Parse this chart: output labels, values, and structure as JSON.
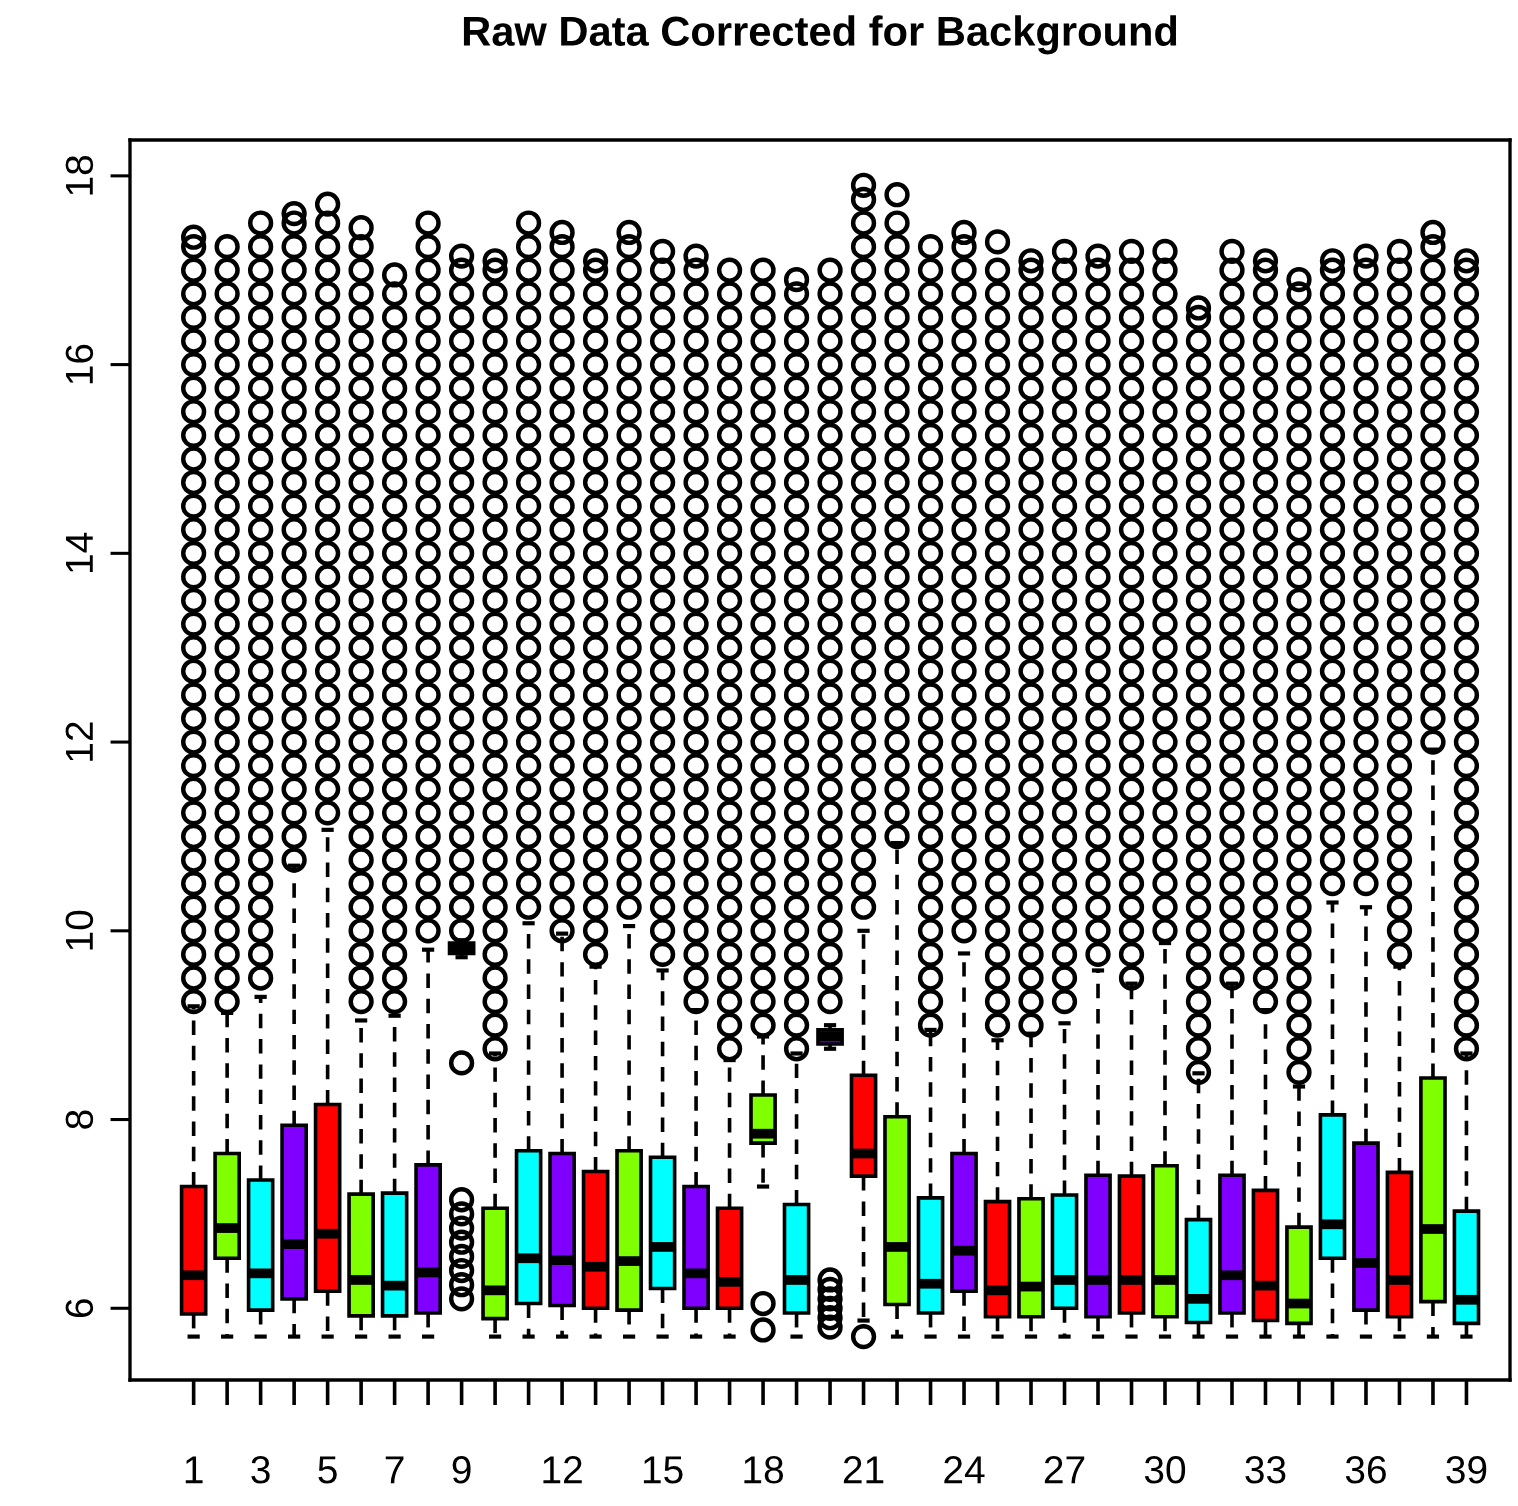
{
  "chart_data": {
    "type": "box",
    "title": "Raw Data Corrected for Background",
    "categories": [
      "1",
      null,
      "3",
      null,
      "5",
      null,
      "7",
      null,
      "9",
      null,
      null,
      "12",
      null,
      null,
      "15",
      null,
      null,
      "18",
      null,
      null,
      "21",
      null,
      null,
      "24",
      null,
      null,
      "27",
      null,
      null,
      "30",
      null,
      null,
      "33",
      null,
      null,
      "36",
      null,
      null,
      "39"
    ],
    "colors": [
      "#ff0000",
      "#80ff00",
      "#00ffff",
      "#8000ff",
      "#ff0000",
      "#80ff00",
      "#00ffff",
      "#8000ff",
      "#ff0000",
      "#80ff00",
      "#00ffff",
      "#8000ff",
      "#ff0000",
      "#80ff00",
      "#00ffff",
      "#8000ff",
      "#ff0000",
      "#80ff00",
      "#00ffff",
      "#8000ff",
      "#ff0000",
      "#80ff00",
      "#00ffff",
      "#8000ff",
      "#ff0000",
      "#80ff00",
      "#00ffff",
      "#8000ff",
      "#ff0000",
      "#80ff00",
      "#00ffff",
      "#8000ff",
      "#ff0000",
      "#80ff00",
      "#00ffff",
      "#8000ff",
      "#ff0000",
      "#80ff00",
      "#00ffff"
    ],
    "ylim": [
      5.24,
      18.38
    ],
    "yticks": [
      6,
      8,
      10,
      12,
      14,
      16,
      18
    ],
    "boxes": [
      {
        "low": 5.7,
        "q1": 5.94,
        "median": 6.35,
        "q3": 7.29,
        "high": 9.2,
        "outliers": [
          9.25,
          9.5,
          9.75,
          10,
          10.25,
          10.5,
          10.75,
          11,
          11.25,
          11.5,
          11.75,
          12,
          12.25,
          12.5,
          12.75,
          13,
          13.25,
          13.5,
          13.75,
          14,
          14.25,
          14.5,
          14.75,
          15,
          15.25,
          15.5,
          15.75,
          16,
          16.25,
          16.5,
          16.75,
          17,
          17.25,
          17.35
        ]
      },
      {
        "low": 5.7,
        "q1": 6.53,
        "median": 6.85,
        "q3": 7.64,
        "high": 9.13,
        "outliers": [
          9.25,
          9.5,
          9.75,
          10,
          10.25,
          10.5,
          10.75,
          11,
          11.25,
          11.5,
          11.75,
          12,
          12.25,
          12.5,
          12.75,
          13,
          13.25,
          13.5,
          13.75,
          14,
          14.25,
          14.5,
          14.75,
          15,
          15.25,
          15.5,
          15.75,
          16,
          16.25,
          16.5,
          16.75,
          17,
          17.25
        ]
      },
      {
        "low": 5.7,
        "q1": 5.98,
        "median": 6.37,
        "q3": 7.36,
        "high": 9.3,
        "outliers": [
          9.5,
          9.75,
          10,
          10.25,
          10.5,
          10.75,
          11,
          11.25,
          11.5,
          11.75,
          12,
          12.25,
          12.5,
          12.75,
          13,
          13.25,
          13.5,
          13.75,
          14,
          14.25,
          14.5,
          14.75,
          15,
          15.25,
          15.5,
          15.75,
          16,
          16.25,
          16.5,
          16.75,
          17,
          17.25,
          17.5
        ]
      },
      {
        "low": 5.7,
        "q1": 6.1,
        "median": 6.68,
        "q3": 7.94,
        "high": 10.69,
        "outliers": [
          10.75,
          11,
          11.25,
          11.5,
          11.75,
          12,
          12.25,
          12.5,
          12.75,
          13,
          13.25,
          13.5,
          13.75,
          14,
          14.25,
          14.5,
          14.75,
          15,
          15.25,
          15.5,
          15.75,
          16,
          16.25,
          16.5,
          16.75,
          17,
          17.25,
          17.5,
          17.6
        ]
      },
      {
        "low": 5.7,
        "q1": 6.18,
        "median": 6.79,
        "q3": 8.16,
        "high": 11.07,
        "outliers": [
          11.25,
          11.5,
          11.75,
          12,
          12.25,
          12.5,
          12.75,
          13,
          13.25,
          13.5,
          13.75,
          14,
          14.25,
          14.5,
          14.75,
          15,
          15.25,
          15.5,
          15.75,
          16,
          16.25,
          16.5,
          16.75,
          17,
          17.25,
          17.5,
          17.7
        ]
      },
      {
        "low": 5.7,
        "q1": 5.92,
        "median": 6.3,
        "q3": 7.21,
        "high": 9.05,
        "outliers": [
          9.25,
          9.5,
          9.75,
          10,
          10.25,
          10.5,
          10.75,
          11,
          11.25,
          11.5,
          11.75,
          12,
          12.25,
          12.5,
          12.75,
          13,
          13.25,
          13.5,
          13.75,
          14,
          14.25,
          14.5,
          14.75,
          15,
          15.25,
          15.5,
          15.75,
          16,
          16.25,
          16.5,
          16.75,
          17,
          17.25,
          17.45
        ]
      },
      {
        "low": 5.7,
        "q1": 5.92,
        "median": 6.24,
        "q3": 7.22,
        "high": 9.1,
        "outliers": [
          9.25,
          9.5,
          9.75,
          10,
          10.25,
          10.5,
          10.75,
          11,
          11.25,
          11.5,
          11.75,
          12,
          12.25,
          12.5,
          12.75,
          13,
          13.25,
          13.5,
          13.75,
          14,
          14.25,
          14.5,
          14.75,
          15,
          15.25,
          15.5,
          15.75,
          16,
          16.25,
          16.5,
          16.75,
          16.95
        ]
      },
      {
        "low": 5.7,
        "q1": 5.95,
        "median": 6.38,
        "q3": 7.52,
        "high": 9.8,
        "outliers": [
          10,
          10.25,
          10.5,
          10.75,
          11,
          11.25,
          11.5,
          11.75,
          12,
          12.25,
          12.5,
          12.75,
          13,
          13.25,
          13.5,
          13.75,
          14,
          14.25,
          14.5,
          14.75,
          15,
          15.25,
          15.5,
          15.75,
          16,
          16.25,
          16.5,
          16.75,
          17,
          17.25,
          17.5
        ]
      },
      {
        "low": 9.72,
        "q1": 9.76,
        "median": 9.8,
        "q3": 9.87,
        "high": 9.9,
        "outliers": [
          6.1,
          6.25,
          6.4,
          6.55,
          6.7,
          6.85,
          7.0,
          7.15,
          8.6,
          10,
          10.25,
          10.5,
          10.75,
          11,
          11.25,
          11.5,
          11.75,
          12,
          12.25,
          12.5,
          12.75,
          13,
          13.25,
          13.5,
          13.75,
          14,
          14.25,
          14.5,
          14.75,
          15,
          15.25,
          15.5,
          15.75,
          16,
          16.25,
          16.5,
          16.75,
          17,
          17.15
        ]
      },
      {
        "low": 5.7,
        "q1": 5.89,
        "median": 6.19,
        "q3": 7.06,
        "high": 8.7,
        "outliers": [
          8.75,
          9,
          9.25,
          9.5,
          9.75,
          10,
          10.25,
          10.5,
          10.75,
          11,
          11.25,
          11.5,
          11.75,
          12,
          12.25,
          12.5,
          12.75,
          13,
          13.25,
          13.5,
          13.75,
          14,
          14.25,
          14.5,
          14.75,
          15,
          15.25,
          15.5,
          15.75,
          16,
          16.25,
          16.5,
          16.75,
          17,
          17.1
        ]
      },
      {
        "low": 5.7,
        "q1": 6.05,
        "median": 6.53,
        "q3": 7.67,
        "high": 10.08,
        "outliers": [
          10.25,
          10.5,
          10.75,
          11,
          11.25,
          11.5,
          11.75,
          12,
          12.25,
          12.5,
          12.75,
          13,
          13.25,
          13.5,
          13.75,
          14,
          14.25,
          14.5,
          14.75,
          15,
          15.25,
          15.5,
          15.75,
          16,
          16.25,
          16.5,
          16.75,
          17,
          17.25,
          17.5
        ]
      },
      {
        "low": 5.7,
        "q1": 6.03,
        "median": 6.51,
        "q3": 7.64,
        "high": 9.97,
        "outliers": [
          10,
          10.25,
          10.5,
          10.75,
          11,
          11.25,
          11.5,
          11.75,
          12,
          12.25,
          12.5,
          12.75,
          13,
          13.25,
          13.5,
          13.75,
          14,
          14.25,
          14.5,
          14.75,
          15,
          15.25,
          15.5,
          15.75,
          16,
          16.25,
          16.5,
          16.75,
          17,
          17.25,
          17.4
        ]
      },
      {
        "low": 5.7,
        "q1": 6.0,
        "median": 6.44,
        "q3": 7.45,
        "high": 9.62,
        "outliers": [
          9.75,
          10,
          10.25,
          10.5,
          10.75,
          11,
          11.25,
          11.5,
          11.75,
          12,
          12.25,
          12.5,
          12.75,
          13,
          13.25,
          13.5,
          13.75,
          14,
          14.25,
          14.5,
          14.75,
          15,
          15.25,
          15.5,
          15.75,
          16,
          16.25,
          16.5,
          16.75,
          17,
          17.1
        ]
      },
      {
        "low": 5.7,
        "q1": 5.98,
        "median": 6.5,
        "q3": 7.67,
        "high": 10.05,
        "outliers": [
          10.25,
          10.5,
          10.75,
          11,
          11.25,
          11.5,
          11.75,
          12,
          12.25,
          12.5,
          12.75,
          13,
          13.25,
          13.5,
          13.75,
          14,
          14.25,
          14.5,
          14.75,
          15,
          15.25,
          15.5,
          15.75,
          16,
          16.25,
          16.5,
          16.75,
          17,
          17.25,
          17.4
        ]
      },
      {
        "low": 5.7,
        "q1": 6.21,
        "median": 6.65,
        "q3": 7.6,
        "high": 9.58,
        "outliers": [
          9.75,
          10,
          10.25,
          10.5,
          10.75,
          11,
          11.25,
          11.5,
          11.75,
          12,
          12.25,
          12.5,
          12.75,
          13,
          13.25,
          13.5,
          13.75,
          14,
          14.25,
          14.5,
          14.75,
          15,
          15.25,
          15.5,
          15.75,
          16,
          16.25,
          16.5,
          16.75,
          17,
          17.2
        ]
      },
      {
        "low": 5.7,
        "q1": 6.0,
        "median": 6.37,
        "q3": 7.29,
        "high": 9.16,
        "outliers": [
          9.25,
          9.5,
          9.75,
          10,
          10.25,
          10.5,
          10.75,
          11,
          11.25,
          11.5,
          11.75,
          12,
          12.25,
          12.5,
          12.75,
          13,
          13.25,
          13.5,
          13.75,
          14,
          14.25,
          14.5,
          14.75,
          15,
          15.25,
          15.5,
          15.75,
          16,
          16.25,
          16.5,
          16.75,
          17,
          17.15
        ]
      },
      {
        "low": 5.7,
        "q1": 6.0,
        "median": 6.28,
        "q3": 7.06,
        "high": 8.63,
        "outliers": [
          8.75,
          9,
          9.25,
          9.5,
          9.75,
          10,
          10.25,
          10.5,
          10.75,
          11,
          11.25,
          11.5,
          11.75,
          12,
          12.25,
          12.5,
          12.75,
          13,
          13.25,
          13.5,
          13.75,
          14,
          14.25,
          14.5,
          14.75,
          15,
          15.25,
          15.5,
          15.75,
          16,
          16.25,
          16.5,
          16.75,
          17
        ]
      },
      {
        "low": 7.29,
        "q1": 7.75,
        "median": 7.85,
        "q3": 8.26,
        "high": 8.88,
        "outliers": [
          5.77,
          6.05,
          9,
          9.25,
          9.5,
          9.75,
          10,
          10.25,
          10.5,
          10.75,
          11,
          11.25,
          11.5,
          11.75,
          12,
          12.25,
          12.5,
          12.75,
          13,
          13.25,
          13.5,
          13.75,
          14,
          14.25,
          14.5,
          14.75,
          15,
          15.25,
          15.5,
          15.75,
          16,
          16.25,
          16.5,
          16.75,
          17
        ]
      },
      {
        "low": 5.7,
        "q1": 5.95,
        "median": 6.3,
        "q3": 7.1,
        "high": 8.7,
        "outliers": [
          8.75,
          9,
          9.25,
          9.5,
          9.75,
          10,
          10.25,
          10.5,
          10.75,
          11,
          11.25,
          11.5,
          11.75,
          12,
          12.25,
          12.5,
          12.75,
          13,
          13.25,
          13.5,
          13.75,
          14,
          14.25,
          14.5,
          14.75,
          15,
          15.25,
          15.5,
          15.75,
          16,
          16.25,
          16.5,
          16.75,
          16.9
        ]
      },
      {
        "low": 8.75,
        "q1": 8.8,
        "median": 8.88,
        "q3": 8.95,
        "high": 9.0,
        "outliers": [
          5.8,
          5.9,
          6.0,
          6.1,
          6.2,
          6.3,
          9.25,
          9.5,
          9.75,
          10,
          10.25,
          10.5,
          10.75,
          11,
          11.25,
          11.5,
          11.75,
          12,
          12.25,
          12.5,
          12.75,
          13,
          13.25,
          13.5,
          13.75,
          14,
          14.25,
          14.5,
          14.75,
          15,
          15.25,
          15.5,
          15.75,
          16,
          16.25,
          16.5,
          16.75,
          17
        ]
      },
      {
        "low": 5.87,
        "q1": 7.4,
        "median": 7.64,
        "q3": 8.47,
        "high": 10.0,
        "outliers": [
          5.7,
          10.25,
          10.5,
          10.75,
          11,
          11.25,
          11.5,
          11.75,
          12,
          12.25,
          12.5,
          12.75,
          13,
          13.25,
          13.5,
          13.75,
          14,
          14.25,
          14.5,
          14.75,
          15,
          15.25,
          15.5,
          15.75,
          16,
          16.25,
          16.5,
          16.75,
          17,
          17.25,
          17.5,
          17.75,
          17.9
        ]
      },
      {
        "low": 5.7,
        "q1": 6.04,
        "median": 6.65,
        "q3": 8.03,
        "high": 10.93,
        "outliers": [
          11,
          11.25,
          11.5,
          11.75,
          12,
          12.25,
          12.5,
          12.75,
          13,
          13.25,
          13.5,
          13.75,
          14,
          14.25,
          14.5,
          14.75,
          15,
          15.25,
          15.5,
          15.75,
          16,
          16.25,
          16.5,
          16.75,
          17,
          17.25,
          17.5,
          17.8
        ]
      },
      {
        "low": 5.7,
        "q1": 5.95,
        "median": 6.26,
        "q3": 7.17,
        "high": 8.95,
        "outliers": [
          9,
          9.25,
          9.5,
          9.75,
          10,
          10.25,
          10.5,
          10.75,
          11,
          11.25,
          11.5,
          11.75,
          12,
          12.25,
          12.5,
          12.75,
          13,
          13.25,
          13.5,
          13.75,
          14,
          14.25,
          14.5,
          14.75,
          15,
          15.25,
          15.5,
          15.75,
          16,
          16.25,
          16.5,
          16.75,
          17,
          17.25
        ]
      },
      {
        "low": 5.7,
        "q1": 6.18,
        "median": 6.61,
        "q3": 7.64,
        "high": 9.76,
        "outliers": [
          10,
          10.25,
          10.5,
          10.75,
          11,
          11.25,
          11.5,
          11.75,
          12,
          12.25,
          12.5,
          12.75,
          13,
          13.25,
          13.5,
          13.75,
          14,
          14.25,
          14.5,
          14.75,
          15,
          15.25,
          15.5,
          15.75,
          16,
          16.25,
          16.5,
          16.75,
          17,
          17.25,
          17.4
        ]
      },
      {
        "low": 5.7,
        "q1": 5.91,
        "median": 6.19,
        "q3": 7.13,
        "high": 8.84,
        "outliers": [
          9,
          9.25,
          9.5,
          9.75,
          10,
          10.25,
          10.5,
          10.75,
          11,
          11.25,
          11.5,
          11.75,
          12,
          12.25,
          12.5,
          12.75,
          13,
          13.25,
          13.5,
          13.75,
          14,
          14.25,
          14.5,
          14.75,
          15,
          15.25,
          15.5,
          15.75,
          16,
          16.25,
          16.5,
          16.75,
          17,
          17.3
        ]
      },
      {
        "low": 5.7,
        "q1": 5.91,
        "median": 6.23,
        "q3": 7.16,
        "high": 8.91,
        "outliers": [
          9,
          9.25,
          9.5,
          9.75,
          10,
          10.25,
          10.5,
          10.75,
          11,
          11.25,
          11.5,
          11.75,
          12,
          12.25,
          12.5,
          12.75,
          13,
          13.25,
          13.5,
          13.75,
          14,
          14.25,
          14.5,
          14.75,
          15,
          15.25,
          15.5,
          15.75,
          16,
          16.25,
          16.5,
          16.75,
          17,
          17.1
        ]
      },
      {
        "low": 5.7,
        "q1": 6.0,
        "median": 6.3,
        "q3": 7.2,
        "high": 9.02,
        "outliers": [
          9.25,
          9.5,
          9.75,
          10,
          10.25,
          10.5,
          10.75,
          11,
          11.25,
          11.5,
          11.75,
          12,
          12.25,
          12.5,
          12.75,
          13,
          13.25,
          13.5,
          13.75,
          14,
          14.25,
          14.5,
          14.75,
          15,
          15.25,
          15.5,
          15.75,
          16,
          16.25,
          16.5,
          16.75,
          17,
          17.2
        ]
      },
      {
        "low": 5.7,
        "q1": 5.91,
        "median": 6.3,
        "q3": 7.41,
        "high": 9.58,
        "outliers": [
          9.75,
          10,
          10.25,
          10.5,
          10.75,
          11,
          11.25,
          11.5,
          11.75,
          12,
          12.25,
          12.5,
          12.75,
          13,
          13.25,
          13.5,
          13.75,
          14,
          14.25,
          14.5,
          14.75,
          15,
          15.25,
          15.5,
          15.75,
          16,
          16.25,
          16.5,
          16.75,
          17,
          17.15
        ]
      },
      {
        "low": 5.7,
        "q1": 5.95,
        "median": 6.3,
        "q3": 7.4,
        "high": 9.44,
        "outliers": [
          9.5,
          9.75,
          10,
          10.25,
          10.5,
          10.75,
          11,
          11.25,
          11.5,
          11.75,
          12,
          12.25,
          12.5,
          12.75,
          13,
          13.25,
          13.5,
          13.75,
          14,
          14.25,
          14.5,
          14.75,
          15,
          15.25,
          15.5,
          15.75,
          16,
          16.25,
          16.5,
          16.75,
          17,
          17.2
        ]
      },
      {
        "low": 5.7,
        "q1": 5.91,
        "median": 6.3,
        "q3": 7.51,
        "high": 9.87,
        "outliers": [
          10,
          10.25,
          10.5,
          10.75,
          11,
          11.25,
          11.5,
          11.75,
          12,
          12.25,
          12.5,
          12.75,
          13,
          13.25,
          13.5,
          13.75,
          14,
          14.25,
          14.5,
          14.75,
          15,
          15.25,
          15.5,
          15.75,
          16,
          16.25,
          16.5,
          16.75,
          17,
          17.2
        ]
      },
      {
        "low": 5.7,
        "q1": 5.85,
        "median": 6.1,
        "q3": 6.94,
        "high": 8.49,
        "outliers": [
          8.5,
          8.75,
          9,
          9.25,
          9.5,
          9.75,
          10,
          10.25,
          10.5,
          10.75,
          11,
          11.25,
          11.5,
          11.75,
          12,
          12.25,
          12.5,
          12.75,
          13,
          13.25,
          13.5,
          13.75,
          14,
          14.25,
          14.5,
          14.75,
          15,
          15.25,
          15.5,
          15.75,
          16,
          16.25,
          16.5,
          16.6
        ]
      },
      {
        "low": 5.7,
        "q1": 5.95,
        "median": 6.35,
        "q3": 7.41,
        "high": 9.44,
        "outliers": [
          9.5,
          9.75,
          10,
          10.25,
          10.5,
          10.75,
          11,
          11.25,
          11.5,
          11.75,
          12,
          12.25,
          12.5,
          12.75,
          13,
          13.25,
          13.5,
          13.75,
          14,
          14.25,
          14.5,
          14.75,
          15,
          15.25,
          15.5,
          15.75,
          16,
          16.25,
          16.5,
          16.75,
          17,
          17.2
        ]
      },
      {
        "low": 5.7,
        "q1": 5.87,
        "median": 6.24,
        "q3": 7.25,
        "high": 9.16,
        "outliers": [
          9.25,
          9.5,
          9.75,
          10,
          10.25,
          10.5,
          10.75,
          11,
          11.25,
          11.5,
          11.75,
          12,
          12.25,
          12.5,
          12.75,
          13,
          13.25,
          13.5,
          13.75,
          14,
          14.25,
          14.5,
          14.75,
          15,
          15.25,
          15.5,
          15.75,
          16,
          16.25,
          16.5,
          16.75,
          17,
          17.1
        ]
      },
      {
        "low": 5.7,
        "q1": 5.84,
        "median": 6.05,
        "q3": 6.86,
        "high": 8.35,
        "outliers": [
          8.5,
          8.75,
          9,
          9.25,
          9.5,
          9.75,
          10,
          10.25,
          10.5,
          10.75,
          11,
          11.25,
          11.5,
          11.75,
          12,
          12.25,
          12.5,
          12.75,
          13,
          13.25,
          13.5,
          13.75,
          14,
          14.25,
          14.5,
          14.75,
          15,
          15.25,
          15.5,
          15.75,
          16,
          16.25,
          16.5,
          16.75,
          16.9
        ]
      },
      {
        "low": 5.7,
        "q1": 6.53,
        "median": 6.89,
        "q3": 8.05,
        "high": 10.3,
        "outliers": [
          10.5,
          10.75,
          11,
          11.25,
          11.5,
          11.75,
          12,
          12.25,
          12.5,
          12.75,
          13,
          13.25,
          13.5,
          13.75,
          14,
          14.25,
          14.5,
          14.75,
          15,
          15.25,
          15.5,
          15.75,
          16,
          16.25,
          16.5,
          16.75,
          17,
          17.1
        ]
      },
      {
        "low": 5.7,
        "q1": 5.98,
        "median": 6.48,
        "q3": 7.75,
        "high": 10.25,
        "outliers": [
          10.5,
          10.75,
          11,
          11.25,
          11.5,
          11.75,
          12,
          12.25,
          12.5,
          12.75,
          13,
          13.25,
          13.5,
          13.75,
          14,
          14.25,
          14.5,
          14.75,
          15,
          15.25,
          15.5,
          15.75,
          16,
          16.25,
          16.5,
          16.75,
          17,
          17.15
        ]
      },
      {
        "low": 5.7,
        "q1": 5.91,
        "median": 6.3,
        "q3": 7.44,
        "high": 9.62,
        "outliers": [
          9.75,
          10,
          10.25,
          10.5,
          10.75,
          11,
          11.25,
          11.5,
          11.75,
          12,
          12.25,
          12.5,
          12.75,
          13,
          13.25,
          13.5,
          13.75,
          14,
          14.25,
          14.5,
          14.75,
          15,
          15.25,
          15.5,
          15.75,
          16,
          16.25,
          16.5,
          16.75,
          17,
          17.2
        ]
      },
      {
        "low": 5.7,
        "q1": 6.07,
        "median": 6.84,
        "q3": 8.44,
        "high": 11.92,
        "outliers": [
          12,
          12.25,
          12.5,
          12.75,
          13,
          13.25,
          13.5,
          13.75,
          14,
          14.25,
          14.5,
          14.75,
          15,
          15.25,
          15.5,
          15.75,
          16,
          16.25,
          16.5,
          16.75,
          17,
          17.25,
          17.4
        ]
      },
      {
        "low": 5.7,
        "q1": 5.84,
        "median": 6.09,
        "q3": 7.03,
        "high": 8.7,
        "outliers": [
          8.75,
          9,
          9.25,
          9.5,
          9.75,
          10,
          10.25,
          10.5,
          10.75,
          11,
          11.25,
          11.5,
          11.75,
          12,
          12.25,
          12.5,
          12.75,
          13,
          13.25,
          13.5,
          13.75,
          14,
          14.25,
          14.5,
          14.75,
          15,
          15.25,
          15.5,
          15.75,
          16,
          16.25,
          16.5,
          16.75,
          17,
          17.1
        ]
      }
    ]
  }
}
